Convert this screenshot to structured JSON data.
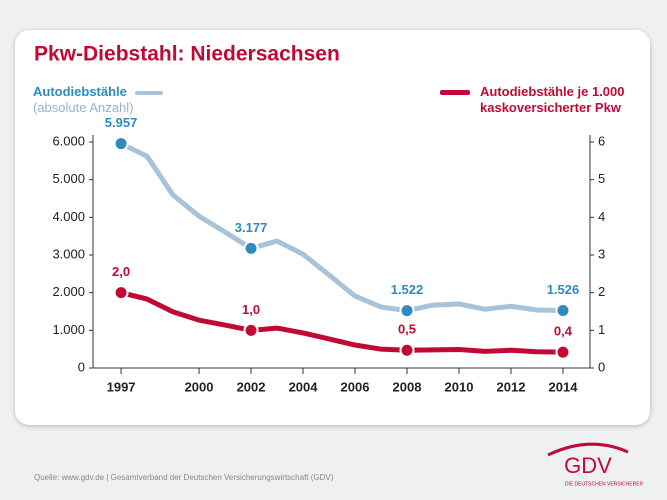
{
  "chart_data": {
    "type": "line",
    "title": "Pkw-Diebstahl: Niedersachsen",
    "x": [
      1997,
      1998,
      1999,
      2000,
      2001,
      2002,
      2003,
      2004,
      2005,
      2006,
      2007,
      2008,
      2009,
      2010,
      2011,
      2012,
      2013,
      2014
    ],
    "xlim": [
      1995.92,
      2015.04
    ],
    "xticks": [
      1997,
      2000,
      2002,
      2004,
      2006,
      2008,
      2010,
      2012,
      2014
    ],
    "ylim": [
      0,
      6000
    ],
    "yticks": [
      {
        "value": 0,
        "label": "0"
      },
      {
        "value": 1000,
        "label": "1.000"
      },
      {
        "value": 2000,
        "label": "2.000"
      },
      {
        "value": 3000,
        "label": "3.000"
      },
      {
        "value": 4000,
        "label": "4.000"
      },
      {
        "value": 5000,
        "label": "5.000"
      },
      {
        "value": 6000,
        "label": "6.000"
      }
    ],
    "y2lim": [
      0,
      6
    ],
    "y2ticks": [
      0,
      1,
      2,
      3,
      4,
      5,
      6
    ],
    "series": [
      {
        "name": "Autodiebstähle",
        "note": "(absolute Anzahl)",
        "color": "#a8c3d8",
        "marker_color": "#2e8bc0",
        "values": [
          5957,
          5620,
          4590,
          4030,
          3610,
          3177,
          3370,
          3020,
          2470,
          1910,
          1620,
          1522,
          1670,
          1700,
          1560,
          1640,
          1540,
          1526
        ],
        "value_labels": [
          "5.957",
          null,
          null,
          null,
          null,
          "3.177",
          null,
          null,
          null,
          null,
          null,
          "1.522",
          null,
          null,
          null,
          null,
          null,
          "1.526"
        ]
      },
      {
        "name": "Autodiebstähle je 1.000 kaskoversicherter Pkw",
        "color": "#c00a35",
        "marker_color": "#c00a35",
        "axis": "y2",
        "values": [
          2.0,
          1.83,
          1.49,
          1.27,
          1.14,
          1.0,
          1.06,
          0.93,
          0.77,
          0.61,
          0.5,
          0.47,
          0.48,
          0.49,
          0.44,
          0.47,
          0.43,
          0.42
        ],
        "value_labels": [
          "2,0",
          null,
          null,
          null,
          null,
          "1,0",
          null,
          null,
          null,
          null,
          null,
          "0,5",
          null,
          null,
          null,
          null,
          null,
          "0,4"
        ]
      }
    ]
  },
  "footer": {
    "source": "Quelle: www.gdv.de | Gesamtverband der Deutschen Versicherungswirtschaft (GDV)",
    "logo": "GDV",
    "logo_tagline": "DIE DEUTSCHEN VERSICHERER"
  }
}
